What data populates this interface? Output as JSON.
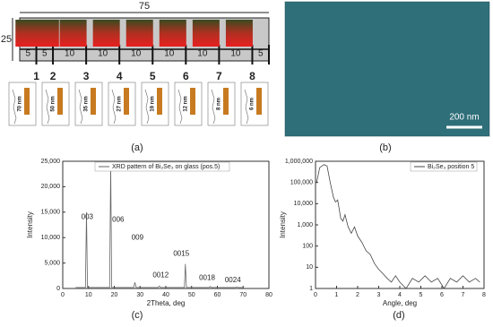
{
  "panel_a": {
    "length": 75,
    "width": 25,
    "segments": [
      5,
      5,
      10,
      10,
      10,
      10,
      10,
      10,
      5
    ],
    "positions": [
      1,
      2,
      3,
      4,
      5,
      6,
      7,
      8
    ],
    "thicknesses": [
      "70 nm",
      "50 nm",
      "35 nm",
      "27 nm",
      "19 nm",
      "12 nm",
      "8 nm",
      "6 nm"
    ],
    "caption": "(a)"
  },
  "panel_b": {
    "scale_bar": "200 nm",
    "caption": "(b)"
  },
  "chart_data": [
    {
      "type": "line",
      "caption": "(c)",
      "x_label": "2Theta, deg",
      "y_label": "Intensity",
      "xlim": [
        0,
        80
      ],
      "xticks": [
        0,
        10,
        20,
        30,
        40,
        50,
        60,
        70,
        80
      ],
      "ylim": [
        0,
        25000
      ],
      "yticks": [
        0,
        {
          "value": 5000,
          "label": "5,000"
        },
        {
          "value": 10000,
          "label": "10,000"
        },
        {
          "value": 15000,
          "label": "15,000"
        },
        {
          "value": 20000,
          "label": "20,000"
        },
        {
          "value": 25000,
          "label": "25,000"
        }
      ],
      "series": [
        {
          "name": "XRD pattern of Bi₂Se₃ on glass (pos.5)",
          "color": "#666666",
          "x": [
            5,
            8.8,
            9.2,
            9.6,
            18.2,
            18.6,
            19.0,
            27.5,
            28,
            28.5,
            37,
            37.5,
            38,
            47.2,
            47.6,
            48,
            56.8,
            57.2,
            57.6,
            67,
            67.5,
            68,
            70
          ],
          "values": [
            200,
            200,
            15000,
            200,
            200,
            24500,
            200,
            200,
            1200,
            200,
            200,
            500,
            200,
            200,
            4800,
            200,
            200,
            400,
            200,
            200,
            300,
            200,
            200
          ]
        }
      ],
      "annotations": [
        {
          "text": "003",
          "x": 9.5,
          "y": 14000
        },
        {
          "text": "006",
          "x": 21.5,
          "y": 13500
        },
        {
          "text": "009",
          "x": 29,
          "y": 10000
        },
        {
          "text": "0015",
          "x": 46,
          "y": 6800
        },
        {
          "text": "0012",
          "x": 38,
          "y": 2600
        },
        {
          "text": "0018",
          "x": 56,
          "y": 2000
        },
        {
          "text": "0024",
          "x": 66,
          "y": 1600
        }
      ]
    },
    {
      "type": "line",
      "log_y": true,
      "caption": "(d)",
      "x_label": "Angle, deg",
      "y_label": "Intensity",
      "xlim": [
        0,
        8
      ],
      "xticks": [
        0,
        1,
        2,
        3,
        4,
        5,
        6,
        7,
        8
      ],
      "ylim": [
        1,
        1000000
      ],
      "yticks": [
        1,
        10,
        100,
        {
          "value": 1000,
          "label": "1,000"
        },
        {
          "value": 10000,
          "label": "10,000"
        },
        {
          "value": 100000,
          "label": "100,000"
        },
        {
          "value": 1000000,
          "label": "1,000,000"
        }
      ],
      "series": [
        {
          "name": "Bi₂Se₃ position 5",
          "color": "#444444",
          "x": [
            0.05,
            0.2,
            0.4,
            0.55,
            0.7,
            0.85,
            0.95,
            1.05,
            1.2,
            1.3,
            1.4,
            1.55,
            1.7,
            1.85,
            2.0,
            2.2,
            2.4,
            2.6,
            2.8,
            3.0,
            3.2,
            3.4,
            3.6,
            3.8,
            4.0,
            4.3,
            4.6,
            4.9,
            5.2,
            5.5,
            5.8,
            6.1,
            6.4,
            6.7,
            7.0,
            7.3,
            7.6,
            7.8
          ],
          "values": [
            100000,
            500000,
            700000,
            600000,
            100000,
            20000,
            12000,
            15000,
            2000,
            1500,
            3000,
            800,
            400,
            800,
            300,
            150,
            60,
            40,
            15,
            8,
            5,
            3,
            2,
            4,
            2,
            1,
            3,
            2,
            4,
            2,
            3,
            1,
            3,
            2,
            4,
            2,
            3,
            2
          ]
        }
      ]
    }
  ]
}
